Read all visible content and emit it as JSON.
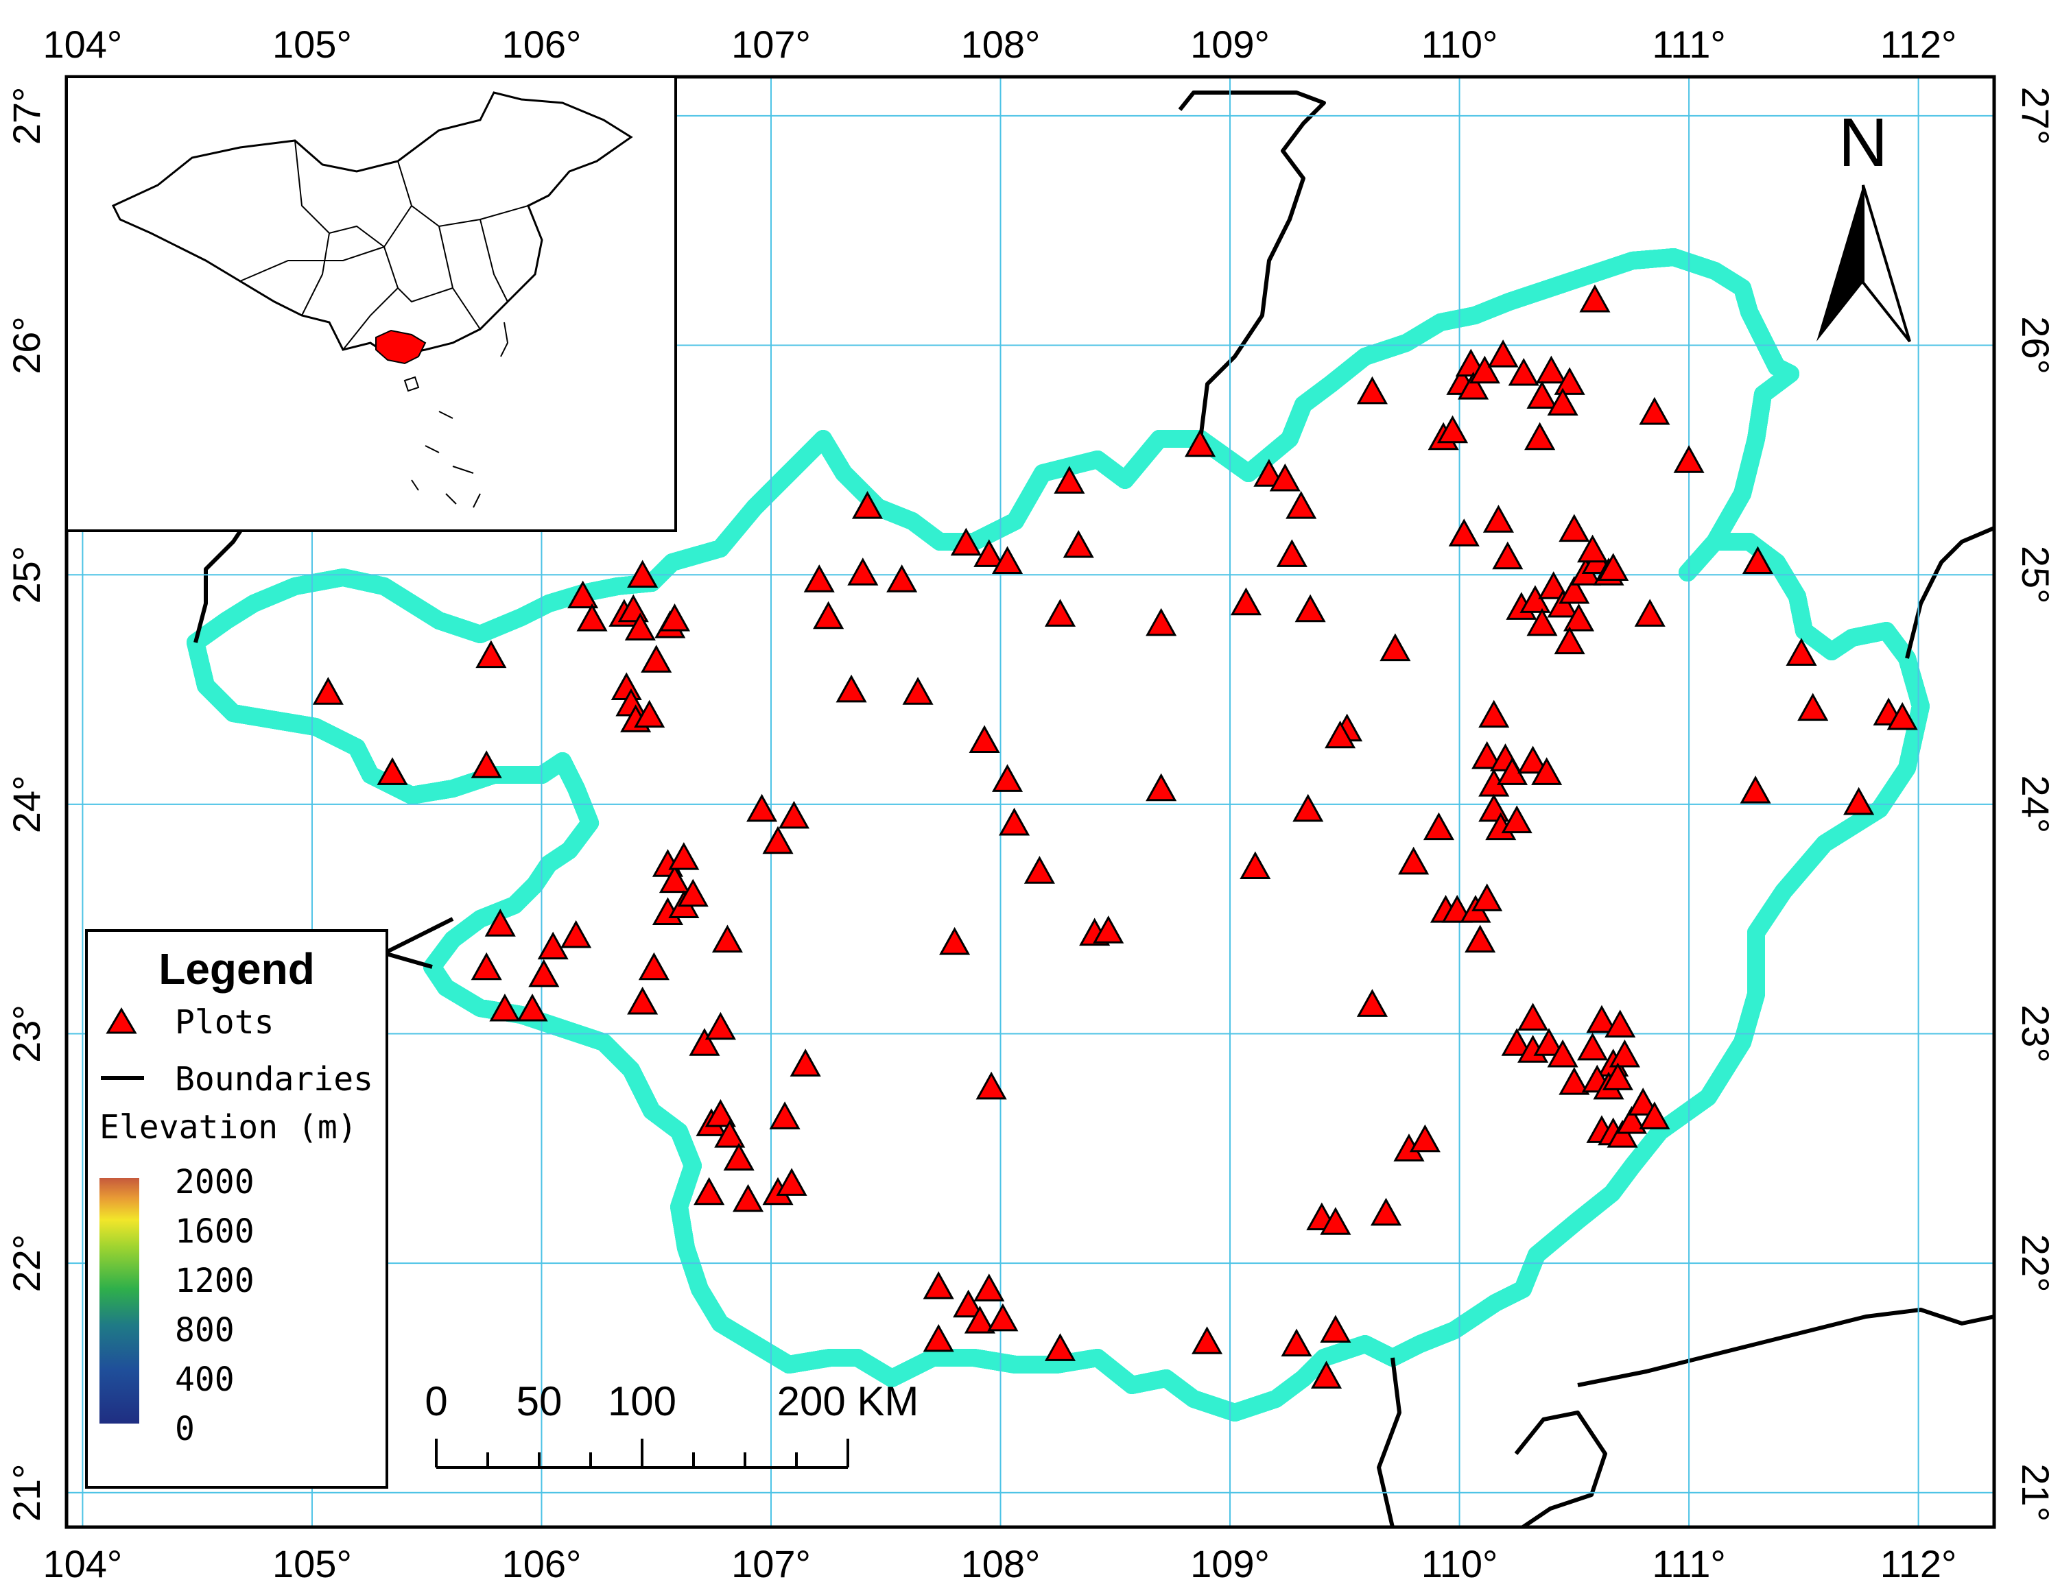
{
  "map": {
    "lon_ticks": [
      "104°",
      "105°",
      "106°",
      "107°",
      "108°",
      "109°",
      "110°",
      "111°",
      "112°"
    ],
    "lat_ticks": [
      "21°",
      "22°",
      "23°",
      "24°",
      "25°",
      "26°",
      "27°"
    ],
    "lon_values": [
      104,
      105,
      106,
      107,
      108,
      109,
      110,
      111,
      112
    ],
    "lat_values": [
      21,
      22,
      23,
      24,
      25,
      26,
      27
    ],
    "lon_range": [
      103.93,
      112.33
    ],
    "lat_range": [
      20.85,
      27.17
    ],
    "colors": {
      "grid": "#4dc3e6",
      "boundary": "#000000",
      "halo": "#33f0d0",
      "plot_fill": "#ff0000",
      "inset_highlight": "#ff0000"
    }
  },
  "north_arrow": {
    "label": "N"
  },
  "legend": {
    "title": "Legend",
    "plots_label": "Plots",
    "boundaries_label": "Boundaries",
    "elevation_label": "Elevation (m)",
    "ticks": [
      "2000",
      "1600",
      "1200",
      "800",
      "400",
      "0"
    ],
    "colors": [
      "#c65a3c",
      "#f2e62a",
      "#35b840",
      "#1f5f9e",
      "#1f3283"
    ]
  },
  "scale_bar": {
    "labels": [
      "0",
      "50",
      "100",
      "200 KM"
    ]
  },
  "plots": [
    [
      105.07,
      24.48
    ],
    [
      105.35,
      24.13
    ],
    [
      105.78,
      24.64
    ],
    [
      105.76,
      24.16
    ],
    [
      105.82,
      23.47
    ],
    [
      105.76,
      23.28
    ],
    [
      105.84,
      23.1
    ],
    [
      105.96,
      23.1
    ],
    [
      106.01,
      23.25
    ],
    [
      106.05,
      23.37
    ],
    [
      106.15,
      23.42
    ],
    [
      106.18,
      24.9
    ],
    [
      106.22,
      24.8
    ],
    [
      106.36,
      24.82
    ],
    [
      106.4,
      24.84
    ],
    [
      106.43,
      24.76
    ],
    [
      106.5,
      24.62
    ],
    [
      106.56,
      24.77
    ],
    [
      106.58,
      24.8
    ],
    [
      106.44,
      24.99
    ],
    [
      106.37,
      24.5
    ],
    [
      106.39,
      24.43
    ],
    [
      106.41,
      24.36
    ],
    [
      106.47,
      24.38
    ],
    [
      106.55,
      23.73
    ],
    [
      106.58,
      23.66
    ],
    [
      106.62,
      23.76
    ],
    [
      106.55,
      23.52
    ],
    [
      106.62,
      23.55
    ],
    [
      106.66,
      23.6
    ],
    [
      106.49,
      23.28
    ],
    [
      106.44,
      23.13
    ],
    [
      106.71,
      22.95
    ],
    [
      106.78,
      23.02
    ],
    [
      106.74,
      22.6
    ],
    [
      106.78,
      22.64
    ],
    [
      106.82,
      22.55
    ],
    [
      106.86,
      22.45
    ],
    [
      106.73,
      22.3
    ],
    [
      106.9,
      22.27
    ],
    [
      107.03,
      22.3
    ],
    [
      107.06,
      22.63
    ],
    [
      107.09,
      22.34
    ],
    [
      107.15,
      22.86
    ],
    [
      106.81,
      23.4
    ],
    [
      106.96,
      23.97
    ],
    [
      107.03,
      23.83
    ],
    [
      107.1,
      23.94
    ],
    [
      107.21,
      24.97
    ],
    [
      107.25,
      24.81
    ],
    [
      107.4,
      25.0
    ],
    [
      107.42,
      25.29
    ],
    [
      107.57,
      24.97
    ],
    [
      107.35,
      24.49
    ],
    [
      107.64,
      24.48
    ],
    [
      107.85,
      25.13
    ],
    [
      107.95,
      25.08
    ],
    [
      108.03,
      25.05
    ],
    [
      107.93,
      24.27
    ],
    [
      108.03,
      24.1
    ],
    [
      108.06,
      23.91
    ],
    [
      108.17,
      23.7
    ],
    [
      107.8,
      23.39
    ],
    [
      107.96,
      22.76
    ],
    [
      107.73,
      21.89
    ],
    [
      107.86,
      21.81
    ],
    [
      107.95,
      21.88
    ],
    [
      107.91,
      21.74
    ],
    [
      108.01,
      21.75
    ],
    [
      107.73,
      21.66
    ],
    [
      108.26,
      21.62
    ],
    [
      108.3,
      25.4
    ],
    [
      108.34,
      25.12
    ],
    [
      108.26,
      24.82
    ],
    [
      108.41,
      23.43
    ],
    [
      108.47,
      23.44
    ],
    [
      108.7,
      24.78
    ],
    [
      108.7,
      24.06
    ],
    [
      108.87,
      25.56
    ],
    [
      108.9,
      21.65
    ],
    [
      109.07,
      24.87
    ],
    [
      109.11,
      23.72
    ],
    [
      109.17,
      25.43
    ],
    [
      109.24,
      25.41
    ],
    [
      109.31,
      25.29
    ],
    [
      109.27,
      25.08
    ],
    [
      109.35,
      24.84
    ],
    [
      109.34,
      23.97
    ],
    [
      109.29,
      21.64
    ],
    [
      109.42,
      21.5
    ],
    [
      109.46,
      21.7
    ],
    [
      109.4,
      22.19
    ],
    [
      109.46,
      22.17
    ],
    [
      109.51,
      24.32
    ],
    [
      109.48,
      24.29
    ],
    [
      109.62,
      25.79
    ],
    [
      109.68,
      22.21
    ],
    [
      109.72,
      24.67
    ],
    [
      109.62,
      23.12
    ],
    [
      109.8,
      23.74
    ],
    [
      109.78,
      22.49
    ],
    [
      109.85,
      22.53
    ],
    [
      109.93,
      25.59
    ],
    [
      109.97,
      25.62
    ],
    [
      110.01,
      25.83
    ],
    [
      110.05,
      25.91
    ],
    [
      110.06,
      25.81
    ],
    [
      110.11,
      25.88
    ],
    [
      110.19,
      25.95
    ],
    [
      110.28,
      25.87
    ],
    [
      110.4,
      25.88
    ],
    [
      110.48,
      25.83
    ],
    [
      110.36,
      25.77
    ],
    [
      110.45,
      25.74
    ],
    [
      110.35,
      25.59
    ],
    [
      109.91,
      23.89
    ],
    [
      109.94,
      23.53
    ],
    [
      109.99,
      23.53
    ],
    [
      110.07,
      23.53
    ],
    [
      110.09,
      23.4
    ],
    [
      110.12,
      23.58
    ],
    [
      110.02,
      25.17
    ],
    [
      110.17,
      25.23
    ],
    [
      110.21,
      25.07
    ],
    [
      110.15,
      24.38
    ],
    [
      110.12,
      24.2
    ],
    [
      110.2,
      24.19
    ],
    [
      110.15,
      24.08
    ],
    [
      110.23,
      24.13
    ],
    [
      110.15,
      23.97
    ],
    [
      110.18,
      23.89
    ],
    [
      110.25,
      23.92
    ],
    [
      110.32,
      24.18
    ],
    [
      110.38,
      24.13
    ],
    [
      110.27,
      24.85
    ],
    [
      110.33,
      24.88
    ],
    [
      110.36,
      24.78
    ],
    [
      110.41,
      24.94
    ],
    [
      110.45,
      24.86
    ],
    [
      110.5,
      24.92
    ],
    [
      110.52,
      24.8
    ],
    [
      110.48,
      24.7
    ],
    [
      110.55,
      25.0
    ],
    [
      110.6,
      25.05
    ],
    [
      110.65,
      25.0
    ],
    [
      110.5,
      25.19
    ],
    [
      110.58,
      25.1
    ],
    [
      110.67,
      25.02
    ],
    [
      110.85,
      25.7
    ],
    [
      110.83,
      24.82
    ],
    [
      111.0,
      25.49
    ],
    [
      111.3,
      25.05
    ],
    [
      110.59,
      26.19
    ],
    [
      110.25,
      22.95
    ],
    [
      110.32,
      22.92
    ],
    [
      110.39,
      22.95
    ],
    [
      110.45,
      22.9
    ],
    [
      110.5,
      22.78
    ],
    [
      110.32,
      23.06
    ],
    [
      110.58,
      22.93
    ],
    [
      110.62,
      23.05
    ],
    [
      110.7,
      23.03
    ],
    [
      110.67,
      22.86
    ],
    [
      110.72,
      22.9
    ],
    [
      110.6,
      22.79
    ],
    [
      110.65,
      22.76
    ],
    [
      110.69,
      22.8
    ],
    [
      110.62,
      22.57
    ],
    [
      110.67,
      22.56
    ],
    [
      110.71,
      22.55
    ],
    [
      110.75,
      22.61
    ],
    [
      110.8,
      22.69
    ],
    [
      110.85,
      22.63
    ],
    [
      111.29,
      24.05
    ],
    [
      111.49,
      24.65
    ],
    [
      111.54,
      24.41
    ],
    [
      111.74,
      24.0
    ],
    [
      111.87,
      24.39
    ],
    [
      111.93,
      24.37
    ]
  ]
}
